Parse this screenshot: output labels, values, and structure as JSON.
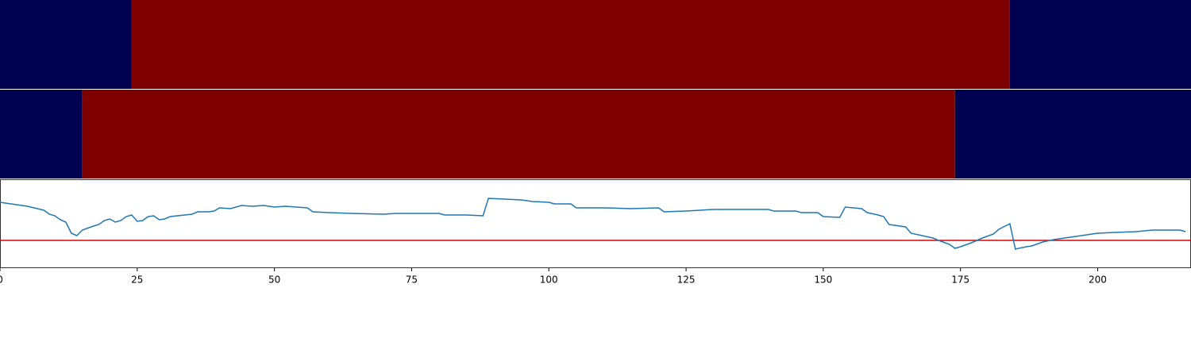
{
  "chart_data": [
    {
      "type": "heatmap",
      "xlim": [
        0,
        217
      ],
      "edges": [
        0,
        24,
        184,
        217
      ],
      "values": [
        0,
        1,
        0
      ],
      "colors": [
        "#000050",
        "#7f0000"
      ]
    },
    {
      "type": "heatmap",
      "xlim": [
        0,
        217
      ],
      "edges": [
        0,
        15,
        174,
        217
      ],
      "values": [
        0,
        1,
        0
      ],
      "colors": [
        "#000050",
        "#7f0000"
      ]
    },
    {
      "type": "line",
      "xlim": [
        0,
        217
      ],
      "ylim": [
        0,
        112
      ],
      "xticks": [
        0,
        25,
        50,
        75,
        100,
        125,
        150,
        175,
        200
      ],
      "x": [
        0,
        2,
        5,
        8,
        9,
        10,
        11,
        12,
        13,
        14,
        15,
        17,
        18,
        19,
        20,
        21,
        22,
        23,
        24,
        25,
        26,
        27,
        28,
        29,
        30,
        31,
        35,
        36,
        38,
        39,
        40,
        42,
        44,
        46,
        48,
        50,
        52,
        54,
        56,
        57,
        60,
        64,
        70,
        72,
        75,
        80,
        81,
        85,
        88,
        89,
        92,
        95,
        97,
        100,
        101,
        104,
        105,
        110,
        115,
        120,
        121,
        125,
        130,
        135,
        140,
        141,
        145,
        146,
        149,
        150,
        153,
        154,
        157,
        158,
        160,
        161,
        162,
        165,
        166,
        168,
        170,
        171,
        173,
        174,
        175,
        177,
        179,
        181,
        182,
        184,
        185,
        187,
        188,
        190,
        192,
        195,
        198,
        200,
        203,
        207,
        210,
        213,
        215,
        216
      ],
      "series": [
        {
          "color": "#1f77b4",
          "values": [
            83,
            81,
            78,
            73,
            68,
            66,
            61,
            58,
            44,
            41,
            48,
            53,
            55,
            60,
            62,
            58,
            60,
            65,
            67,
            59,
            60,
            65,
            66,
            61,
            62,
            65,
            68,
            71,
            71,
            72,
            76,
            75,
            79,
            78,
            79,
            77,
            78,
            77,
            76,
            71,
            70,
            69,
            68,
            69,
            69,
            69,
            67,
            67,
            66,
            88,
            87,
            86,
            84,
            83,
            81,
            81,
            76,
            76,
            75,
            76,
            71,
            72,
            74,
            74,
            74,
            72,
            72,
            70,
            70,
            65,
            64,
            77,
            75,
            70,
            67,
            65,
            55,
            52,
            44,
            41,
            38,
            35,
            30,
            25,
            27,
            32,
            38,
            43,
            49,
            56,
            24,
            27,
            28,
            33,
            36,
            39,
            42,
            44,
            45,
            46,
            48,
            48,
            48,
            46
          ]
        }
      ],
      "hline": 35,
      "hline_color": "#e00000"
    }
  ]
}
